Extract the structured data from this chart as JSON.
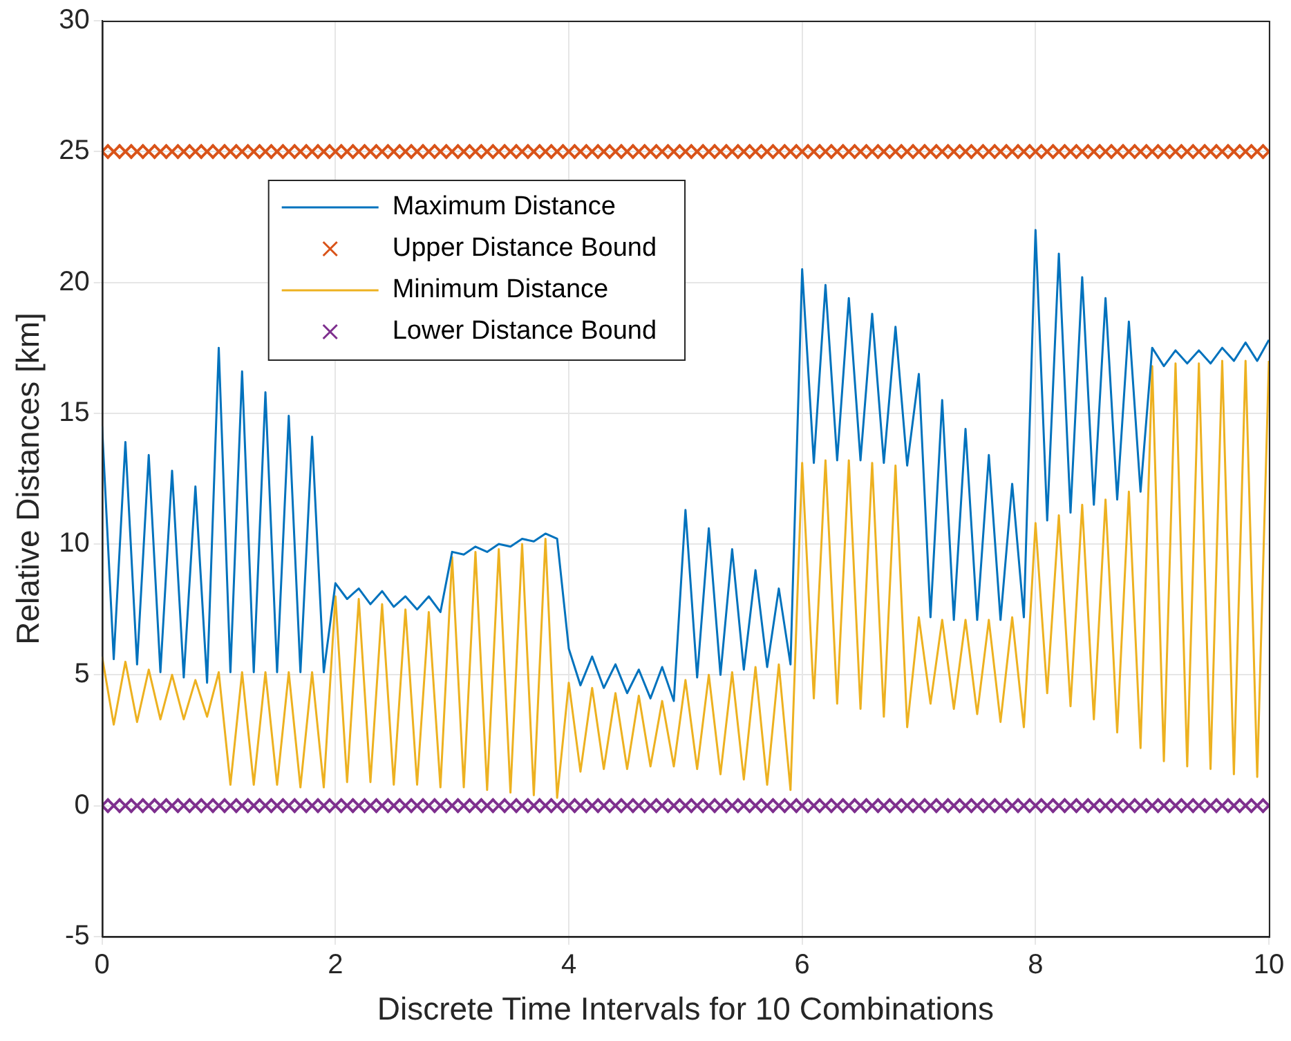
{
  "chart_data": {
    "type": "line",
    "xlabel": "Discrete Time Intervals for 10 Combinations",
    "ylabel": "Relative Distances [km]",
    "xlim": [
      0,
      10
    ],
    "xticks": [
      0,
      2,
      4,
      6,
      8,
      10
    ],
    "ylim": [
      -5,
      30
    ],
    "yticks": [
      -5,
      0,
      5,
      10,
      15,
      20,
      25,
      30
    ],
    "grid": true,
    "legend": "top left",
    "line_style": "solid",
    "series": [
      {
        "name": "Maximum Distance",
        "color": "#0072bd",
        "x": [
          0,
          0.1,
          0.2,
          0.3,
          0.4,
          0.5,
          0.6,
          0.7,
          0.8,
          0.9,
          1,
          1.1,
          1.2,
          1.3,
          1.4,
          1.5,
          1.6,
          1.7,
          1.8,
          1.9,
          2,
          2.1,
          2.2,
          2.3,
          2.4,
          2.5,
          2.6,
          2.7,
          2.8,
          2.9,
          3,
          3.1,
          3.2,
          3.3,
          3.4,
          3.5,
          3.6,
          3.7,
          3.8,
          3.9,
          4,
          4.1,
          4.2,
          4.3,
          4.4,
          4.5,
          4.6,
          4.7,
          4.8,
          4.9,
          5,
          5.1,
          5.2,
          5.3,
          5.4,
          5.5,
          5.6,
          5.7,
          5.8,
          5.9,
          6,
          6.1,
          6.2,
          6.3,
          6.4,
          6.5,
          6.6,
          6.7,
          6.8,
          6.9,
          7,
          7.1,
          7.2,
          7.3,
          7.4,
          7.5,
          7.6,
          7.7,
          7.8,
          7.9,
          8,
          8.1,
          8.2,
          8.3,
          8.4,
          8.5,
          8.6,
          8.7,
          8.8,
          8.9,
          9,
          9.1,
          9.2,
          9.3,
          9.4,
          9.5,
          9.6,
          9.7,
          9.8,
          9.9,
          10
        ],
        "values": [
          14.5,
          5.6,
          13.9,
          5.4,
          13.4,
          5.1,
          12.8,
          4.9,
          12.2,
          4.7,
          17.5,
          5.1,
          16.6,
          5.1,
          15.8,
          5.1,
          14.9,
          5.1,
          14.1,
          5.1,
          8.5,
          7.9,
          8.3,
          7.7,
          8.2,
          7.6,
          8.0,
          7.5,
          8.0,
          7.4,
          9.7,
          9.6,
          9.9,
          9.7,
          10.0,
          9.9,
          10.2,
          10.1,
          10.4,
          10.2,
          6.0,
          4.6,
          5.7,
          4.5,
          5.4,
          4.3,
          5.2,
          4.1,
          5.3,
          4.0,
          11.3,
          4.9,
          10.6,
          5.0,
          9.8,
          5.2,
          9.0,
          5.3,
          8.3,
          5.4,
          20.5,
          13.1,
          19.9,
          13.2,
          19.4,
          13.2,
          18.8,
          13.1,
          18.3,
          13.0,
          16.5,
          7.2,
          15.5,
          7.1,
          14.4,
          7.1,
          13.4,
          7.1,
          12.3,
          7.2,
          22.0,
          10.9,
          21.1,
          11.2,
          20.2,
          11.5,
          19.4,
          11.7,
          18.5,
          12.0,
          17.5,
          16.8,
          17.4,
          16.9,
          17.4,
          16.9,
          17.5,
          17.0,
          17.7,
          17.0,
          17.8
        ]
      },
      {
        "name": "Upper Distance Bound",
        "type": "scatter",
        "marker": "cross",
        "color": "#d95319",
        "x": [
          0,
          0.1,
          0.2,
          0.3,
          0.4,
          0.5,
          0.6,
          0.7,
          0.8,
          0.9,
          1,
          1.1,
          1.2,
          1.3,
          1.4,
          1.5,
          1.6,
          1.7,
          1.8,
          1.9,
          2,
          2.1,
          2.2,
          2.3,
          2.4,
          2.5,
          2.6,
          2.7,
          2.8,
          2.9,
          3,
          3.1,
          3.2,
          3.3,
          3.4,
          3.5,
          3.6,
          3.7,
          3.8,
          3.9,
          4,
          4.1,
          4.2,
          4.3,
          4.4,
          4.5,
          4.6,
          4.7,
          4.8,
          4.9,
          5,
          5.1,
          5.2,
          5.3,
          5.4,
          5.5,
          5.6,
          5.7,
          5.8,
          5.9,
          6,
          6.1,
          6.2,
          6.3,
          6.4,
          6.5,
          6.6,
          6.7,
          6.8,
          6.9,
          7,
          7.1,
          7.2,
          7.3,
          7.4,
          7.5,
          7.6,
          7.7,
          7.8,
          7.9,
          8,
          8.1,
          8.2,
          8.3,
          8.4,
          8.5,
          8.6,
          8.7,
          8.8,
          8.9,
          9,
          9.1,
          9.2,
          9.3,
          9.4,
          9.5,
          9.6,
          9.7,
          9.8,
          9.9,
          10
        ],
        "values": [
          25,
          25,
          25,
          25,
          25,
          25,
          25,
          25,
          25,
          25,
          25,
          25,
          25,
          25,
          25,
          25,
          25,
          25,
          25,
          25,
          25,
          25,
          25,
          25,
          25,
          25,
          25,
          25,
          25,
          25,
          25,
          25,
          25,
          25,
          25,
          25,
          25,
          25,
          25,
          25,
          25,
          25,
          25,
          25,
          25,
          25,
          25,
          25,
          25,
          25,
          25,
          25,
          25,
          25,
          25,
          25,
          25,
          25,
          25,
          25,
          25,
          25,
          25,
          25,
          25,
          25,
          25,
          25,
          25,
          25,
          25,
          25,
          25,
          25,
          25,
          25,
          25,
          25,
          25,
          25,
          25,
          25,
          25,
          25,
          25,
          25,
          25,
          25,
          25,
          25,
          25,
          25,
          25,
          25,
          25,
          25,
          25,
          25,
          25,
          25,
          25
        ]
      },
      {
        "name": "Minimum Distance",
        "color": "#edb120",
        "x": [
          0,
          0.1,
          0.2,
          0.3,
          0.4,
          0.5,
          0.6,
          0.7,
          0.8,
          0.9,
          1,
          1.1,
          1.2,
          1.3,
          1.4,
          1.5,
          1.6,
          1.7,
          1.8,
          1.9,
          2,
          2.1,
          2.2,
          2.3,
          2.4,
          2.5,
          2.6,
          2.7,
          2.8,
          2.9,
          3,
          3.1,
          3.2,
          3.3,
          3.4,
          3.5,
          3.6,
          3.7,
          3.8,
          3.9,
          4,
          4.1,
          4.2,
          4.3,
          4.4,
          4.5,
          4.6,
          4.7,
          4.8,
          4.9,
          5,
          5.1,
          5.2,
          5.3,
          5.4,
          5.5,
          5.6,
          5.7,
          5.8,
          5.9,
          6,
          6.1,
          6.2,
          6.3,
          6.4,
          6.5,
          6.6,
          6.7,
          6.8,
          6.9,
          7,
          7.1,
          7.2,
          7.3,
          7.4,
          7.5,
          7.6,
          7.7,
          7.8,
          7.9,
          8,
          8.1,
          8.2,
          8.3,
          8.4,
          8.5,
          8.6,
          8.7,
          8.8,
          8.9,
          9,
          9.1,
          9.2,
          9.3,
          9.4,
          9.5,
          9.6,
          9.7,
          9.8,
          9.9,
          10
        ],
        "values": [
          5.7,
          3.1,
          5.5,
          3.2,
          5.2,
          3.3,
          5.0,
          3.3,
          4.8,
          3.4,
          5.1,
          0.8,
          5.1,
          0.8,
          5.1,
          0.8,
          5.1,
          0.7,
          5.1,
          0.7,
          8.0,
          0.9,
          7.9,
          0.9,
          7.7,
          0.8,
          7.5,
          0.8,
          7.4,
          0.7,
          9.5,
          0.7,
          9.7,
          0.6,
          9.8,
          0.5,
          10.0,
          0.4,
          10.2,
          0.3,
          4.7,
          1.3,
          4.5,
          1.4,
          4.3,
          1.4,
          4.2,
          1.5,
          4.0,
          1.5,
          4.8,
          1.4,
          5.0,
          1.2,
          5.1,
          1.0,
          5.3,
          0.8,
          5.4,
          0.6,
          13.1,
          4.1,
          13.2,
          3.9,
          13.2,
          3.7,
          13.1,
          3.4,
          13.0,
          3.0,
          7.2,
          3.9,
          7.1,
          3.7,
          7.1,
          3.5,
          7.1,
          3.2,
          7.2,
          3.0,
          10.8,
          4.3,
          11.1,
          3.8,
          11.5,
          3.3,
          11.7,
          2.8,
          12.0,
          2.2,
          16.8,
          1.7,
          16.9,
          1.5,
          16.9,
          1.4,
          17.0,
          1.2,
          17.0,
          1.1,
          17.0
        ]
      },
      {
        "name": "Lower Distance Bound",
        "type": "scatter",
        "marker": "cross",
        "color": "#7e2f8e",
        "x": [
          0,
          0.1,
          0.2,
          0.3,
          0.4,
          0.5,
          0.6,
          0.7,
          0.8,
          0.9,
          1,
          1.1,
          1.2,
          1.3,
          1.4,
          1.5,
          1.6,
          1.7,
          1.8,
          1.9,
          2,
          2.1,
          2.2,
          2.3,
          2.4,
          2.5,
          2.6,
          2.7,
          2.8,
          2.9,
          3,
          3.1,
          3.2,
          3.3,
          3.4,
          3.5,
          3.6,
          3.7,
          3.8,
          3.9,
          4,
          4.1,
          4.2,
          4.3,
          4.4,
          4.5,
          4.6,
          4.7,
          4.8,
          4.9,
          5,
          5.1,
          5.2,
          5.3,
          5.4,
          5.5,
          5.6,
          5.7,
          5.8,
          5.9,
          6,
          6.1,
          6.2,
          6.3,
          6.4,
          6.5,
          6.6,
          6.7,
          6.8,
          6.9,
          7,
          7.1,
          7.2,
          7.3,
          7.4,
          7.5,
          7.6,
          7.7,
          7.8,
          7.9,
          8,
          8.1,
          8.2,
          8.3,
          8.4,
          8.5,
          8.6,
          8.7,
          8.8,
          8.9,
          9,
          9.1,
          9.2,
          9.3,
          9.4,
          9.5,
          9.6,
          9.7,
          9.8,
          9.9,
          10
        ],
        "values": [
          0,
          0,
          0,
          0,
          0,
          0,
          0,
          0,
          0,
          0,
          0,
          0,
          0,
          0,
          0,
          0,
          0,
          0,
          0,
          0,
          0,
          0,
          0,
          0,
          0,
          0,
          0,
          0,
          0,
          0,
          0,
          0,
          0,
          0,
          0,
          0,
          0,
          0,
          0,
          0,
          0,
          0,
          0,
          0,
          0,
          0,
          0,
          0,
          0,
          0,
          0,
          0,
          0,
          0,
          0,
          0,
          0,
          0,
          0,
          0,
          0,
          0,
          0,
          0,
          0,
          0,
          0,
          0,
          0,
          0,
          0,
          0,
          0,
          0,
          0,
          0,
          0,
          0,
          0,
          0,
          0,
          0,
          0,
          0,
          0,
          0,
          0,
          0,
          0,
          0,
          0,
          0,
          0,
          0,
          0,
          0,
          0,
          0,
          0,
          0,
          0
        ]
      }
    ]
  }
}
